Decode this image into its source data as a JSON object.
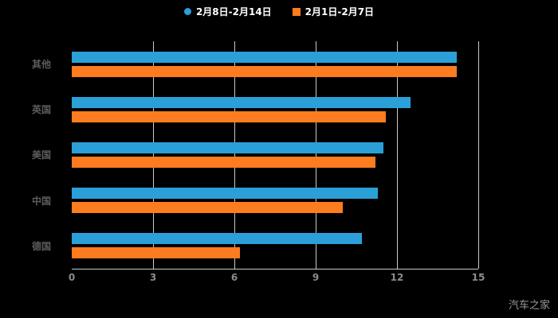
{
  "legend": {
    "items": [
      {
        "name": "2月8日-2月14日",
        "marker": "circle",
        "color": "#2ba0d8"
      },
      {
        "name": "2月1日-2月7日",
        "marker": "square",
        "color": "#fc7c1f"
      }
    ]
  },
  "watermark": "汽车之家",
  "chart_data": {
    "type": "bar",
    "orientation": "horizontal",
    "title": "",
    "categories": [
      "其他",
      "英国",
      "美国",
      "中国",
      "德国"
    ],
    "series": [
      {
        "name": "2月8日-2月14日",
        "color": "#2ba0d8",
        "values": [
          14.2,
          12.5,
          11.5,
          11.3,
          10.7
        ]
      },
      {
        "name": "2月1日-2月7日",
        "color": "#fc7c1f",
        "values": [
          14.2,
          11.6,
          11.2,
          10.0,
          6.2
        ]
      }
    ],
    "xlim": [
      0,
      15
    ],
    "x_ticks": [
      0,
      3,
      6,
      9,
      12,
      15
    ],
    "grid": true,
    "legend_position": "top",
    "background": "#000000"
  }
}
